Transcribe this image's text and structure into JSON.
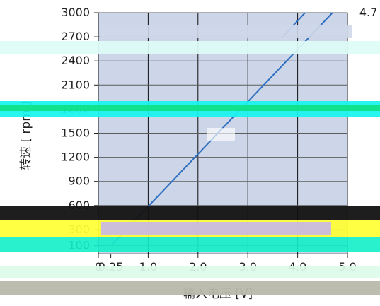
{
  "chart_data": {
    "type": "line",
    "title": "",
    "xlabel": "输入电压 [V]",
    "ylabel": "转速 [ rpm ]",
    "xlim": [
      0,
      5.0
    ],
    "ylim": [
      0,
      3000
    ],
    "x_ticks": [
      "0",
      "0.25",
      "1.0",
      "2.0",
      "3.0",
      "4.0",
      "5.0"
    ],
    "y_ticks": [
      "100",
      "300",
      "600",
      "900",
      "1200",
      "1500",
      "1800",
      "2100",
      "2400",
      "2700",
      "3000"
    ],
    "grid": true,
    "series": [
      {
        "name": "",
        "color": "#2f6fbf",
        "points": [
          {
            "x": 0.25,
            "y": 100
          },
          {
            "x": 4.7,
            "y": 3000
          }
        ]
      },
      {
        "name": "",
        "color": "#2f6fbf",
        "points": [
          {
            "x": 3.7,
            "y": 2700
          },
          {
            "x": 4.15,
            "y": 3000
          }
        ]
      }
    ],
    "annotations": [
      {
        "text": "4.7",
        "x": 4.7,
        "y": 3000
      }
    ]
  }
}
